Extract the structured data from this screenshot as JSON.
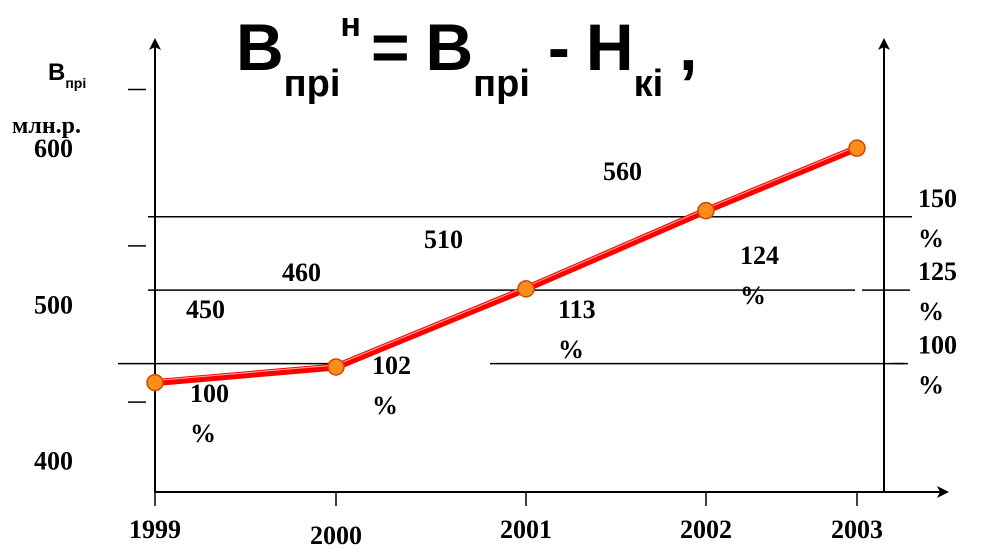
{
  "formula": {
    "lhs_main": "B",
    "lhs_sub": "прі",
    "lhs_sup": "н",
    "equals": "=",
    "rhs_main": "B",
    "rhs_sub": "прі",
    "minus": "-",
    "rhs2_main": "H",
    "rhs2_sub": "кі",
    "comma": ","
  },
  "chart_data": {
    "type": "line",
    "title": "",
    "xlabel": "",
    "ylabel_main": "B",
    "ylabel_sub": "прі",
    "ylabel_units": "млн.р.",
    "x": [
      "1999",
      "2000",
      "2001",
      "2002",
      "2003"
    ],
    "series": [
      {
        "values": [
          450,
          460,
          510,
          560,
          600
        ],
        "color": "#ff0000",
        "marker_color": "#ff8c1a"
      }
    ],
    "value_labels": [
      "450",
      "460",
      "510",
      "560"
    ],
    "percent_labels": [
      "100\n%",
      "102\n%",
      "113\n%",
      "124\n%"
    ],
    "ylim": [
      380,
      650
    ],
    "y_tick_labels": [
      "600",
      "500",
      "400"
    ],
    "y_tick_values": [
      600,
      500,
      400
    ],
    "y_minor_ticks": [
      637.5,
      537.5,
      437.5
    ],
    "right_axis_labels": [
      "150\n%",
      "125\n%",
      "100\n%"
    ],
    "right_axis_values": [
      150,
      125,
      100
    ],
    "right_axis_ylim": [
      56.25,
      200
    ],
    "grid_lines_at_percent": [
      100,
      125,
      150
    ]
  }
}
